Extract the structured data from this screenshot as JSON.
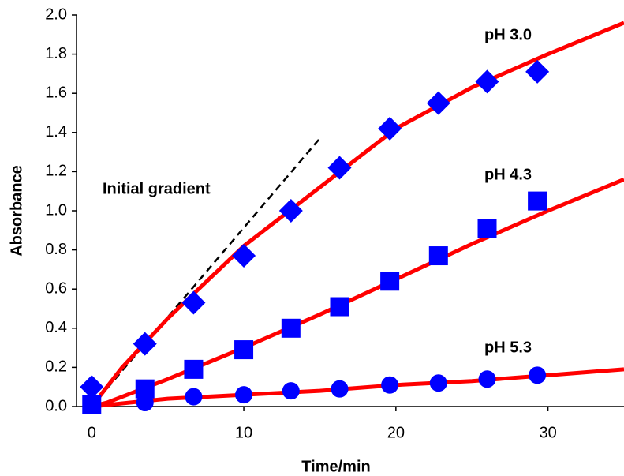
{
  "chart_data": {
    "type": "line",
    "x_label": "Time/min",
    "y_label": "Absorbance",
    "xlim": [
      -1,
      35
    ],
    "ylim": [
      0,
      2
    ],
    "xticks": [
      0,
      10,
      20,
      30
    ],
    "yticks": [
      {
        "value": 0,
        "label": "0.0"
      },
      {
        "value": 0.2,
        "label": "0.2"
      },
      {
        "value": 0.4,
        "label": "0.4"
      },
      {
        "value": 0.6,
        "label": "0.6"
      },
      {
        "value": 0.8,
        "label": "0.8"
      },
      {
        "value": 1,
        "label": "1.0"
      },
      {
        "value": 1.2,
        "label": "1.2"
      },
      {
        "value": 1.4,
        "label": "1.4"
      },
      {
        "value": 1.6,
        "label": "1.6"
      },
      {
        "value": 1.8,
        "label": "1.8"
      },
      {
        "value": 2,
        "label": "2.0"
      }
    ],
    "grid": false,
    "series": [
      {
        "name": "pH 3.0",
        "color": "#0000ff",
        "marker": "diamond",
        "x": [
          0,
          3.5,
          6.7,
          10,
          13.1,
          16.3,
          19.6,
          22.8,
          26,
          29.3
        ],
        "values": [
          0.1,
          0.32,
          0.53,
          0.77,
          1.0,
          1.22,
          1.42,
          1.55,
          1.66,
          1.71
        ],
        "fit": {
          "color": "#ff0000",
          "x": [
            0,
            2,
            5,
            10,
            15,
            20,
            25,
            30,
            35
          ],
          "values": [
            0,
            0.2,
            0.45,
            0.82,
            1.12,
            1.42,
            1.63,
            1.8,
            1.96
          ]
        }
      },
      {
        "name": "pH 4.3",
        "color": "#0000ff",
        "marker": "square",
        "x": [
          0,
          3.5,
          6.7,
          10,
          13.1,
          16.3,
          19.6,
          22.8,
          26,
          29.3
        ],
        "values": [
          0.01,
          0.09,
          0.19,
          0.29,
          0.4,
          0.51,
          0.64,
          0.77,
          0.91,
          1.05
        ],
        "fit": {
          "color": "#ff0000",
          "x": [
            0,
            1,
            5,
            10,
            15,
            20,
            25,
            30,
            35
          ],
          "values": [
            0,
            0.02,
            0.14,
            0.3,
            0.47,
            0.65,
            0.83,
            1.0,
            1.16
          ]
        }
      },
      {
        "name": "pH 5.3",
        "color": "#0000ff",
        "marker": "circle",
        "x": [
          0,
          3.5,
          6.7,
          10,
          13.1,
          16.3,
          19.6,
          22.8,
          26,
          29.3
        ],
        "values": [
          0.01,
          0.02,
          0.05,
          0.06,
          0.08,
          0.09,
          0.11,
          0.12,
          0.14,
          0.16
        ],
        "fit": {
          "color": "#ff0000",
          "x": [
            0,
            5,
            10,
            15,
            20,
            25,
            30,
            35
          ],
          "values": [
            0,
            0.04,
            0.06,
            0.08,
            0.11,
            0.13,
            0.16,
            0.19
          ]
        }
      }
    ],
    "lines": [
      {
        "label": "Initial gradient",
        "color": "#000000",
        "dash": true,
        "x": [
          0,
          15
        ],
        "values": [
          0,
          1.37
        ]
      }
    ]
  }
}
